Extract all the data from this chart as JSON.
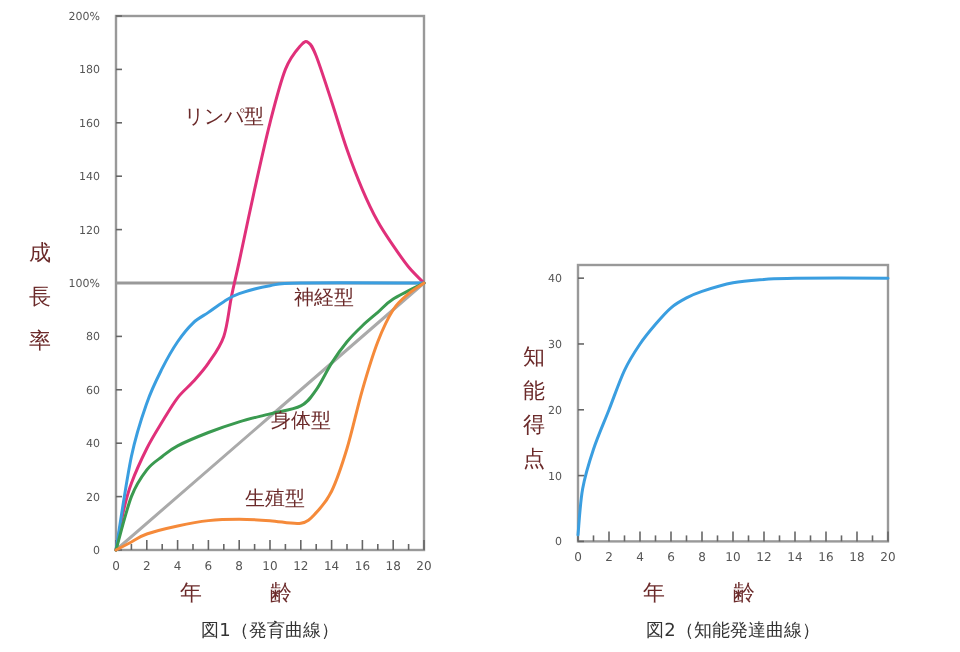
{
  "chart_data": [
    {
      "type": "line",
      "title": "図1（発育曲線）",
      "xlabel": "年齢",
      "ylabel": "成長率",
      "xlim": [
        0,
        20
      ],
      "ylim": [
        0,
        200
      ],
      "xticks": [
        0,
        {
          "value": 1,
          "label": null
        },
        2,
        {
          "value": 3,
          "label": null
        },
        4,
        {
          "value": 5,
          "label": null
        },
        6,
        {
          "value": 7,
          "label": null
        },
        8,
        {
          "value": 9,
          "label": null
        },
        10,
        {
          "value": 11,
          "label": null
        },
        12,
        {
          "value": 13,
          "label": null
        },
        14,
        {
          "value": 15,
          "label": null
        },
        16,
        {
          "value": 17,
          "label": null
        },
        18,
        {
          "value": 19,
          "label": null
        },
        20
      ],
      "yticks": [
        0,
        20,
        40,
        60,
        80,
        {
          "value": 100,
          "label": "100%"
        },
        120,
        140,
        160,
        180,
        {
          "value": 200,
          "label": "200%"
        }
      ],
      "grid": false,
      "ref_lines": [
        {
          "axis": "y",
          "value": 100,
          "color": "#999999"
        }
      ],
      "series": [
        {
          "name": "リンパ型",
          "color": "#e0307a",
          "x": [
            0,
            0.5,
            1,
            2,
            3,
            4,
            5,
            6,
            7,
            7.5,
            8,
            9,
            10,
            11,
            12,
            12.5,
            13,
            14,
            15,
            16,
            17,
            18,
            19,
            20
          ],
          "values": [
            0,
            15,
            25,
            38,
            48,
            57,
            63,
            70,
            80,
            95,
            108,
            135,
            160,
            180,
            189,
            190,
            185,
            168,
            150,
            135,
            123,
            114,
            106,
            100
          ]
        },
        {
          "name": "神経型",
          "color": "#3a9ee0",
          "x": [
            0,
            1,
            2,
            3,
            4,
            5,
            6,
            7,
            8,
            10,
            12,
            20
          ],
          "values": [
            0,
            35,
            55,
            68,
            78,
            85,
            89,
            93,
            96,
            99,
            100,
            100
          ]
        },
        {
          "color": "#aaaaaa",
          "x": [
            0,
            20
          ],
          "values": [
            0,
            100
          ]
        },
        {
          "name": "身体型",
          "color": "#3a9a50",
          "x": [
            0,
            1,
            2,
            3,
            4,
            6,
            8,
            10,
            12,
            13,
            14,
            15,
            16,
            17,
            18,
            20
          ],
          "values": [
            0,
            20,
            30,
            35,
            39,
            44,
            48,
            51,
            54,
            60,
            70,
            78,
            84,
            89,
            94,
            100
          ]
        },
        {
          "name": "生殖型",
          "color": "#f58a3a",
          "x": [
            0,
            1,
            2,
            4,
            6,
            8,
            10,
            12,
            13,
            14,
            15,
            16,
            17,
            18,
            19,
            20
          ],
          "values": [
            0,
            3,
            6,
            9,
            11,
            11.5,
            11,
            10,
            14,
            22,
            38,
            60,
            78,
            90,
            96,
            100
          ]
        }
      ]
    },
    {
      "type": "line",
      "title": "図2（知能発達曲線）",
      "xlabel": "年齢",
      "ylabel": "知能得点",
      "xlim": [
        0,
        20
      ],
      "ylim": [
        0,
        42
      ],
      "xticks": [
        0,
        {
          "value": 1,
          "label": null
        },
        2,
        {
          "value": 3,
          "label": null
        },
        4,
        {
          "value": 5,
          "label": null
        },
        6,
        {
          "value": 7,
          "label": null
        },
        8,
        {
          "value": 9,
          "label": null
        },
        10,
        {
          "value": 11,
          "label": null
        },
        12,
        {
          "value": 13,
          "label": null
        },
        14,
        {
          "value": 15,
          "label": null
        },
        16,
        {
          "value": 17,
          "label": null
        },
        18,
        {
          "value": 19,
          "label": null
        },
        20
      ],
      "yticks": [
        0,
        10,
        20,
        30,
        40
      ],
      "grid": false,
      "series": [
        {
          "color": "#3a9ee0",
          "x": [
            0,
            0.3,
            1,
            2,
            3,
            4,
            5,
            6,
            7,
            8,
            10,
            12,
            14,
            20
          ],
          "values": [
            1,
            8,
            14,
            20,
            26,
            30,
            33,
            35.5,
            37,
            38,
            39.3,
            39.8,
            40,
            40
          ]
        }
      ]
    }
  ]
}
